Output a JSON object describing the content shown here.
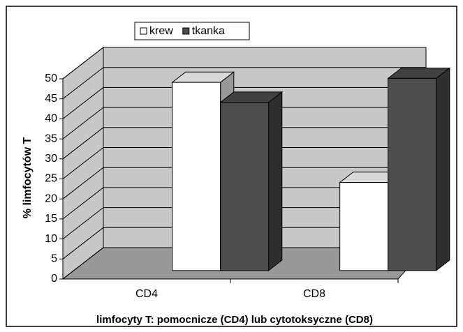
{
  "chart_data": {
    "type": "bar3d",
    "x_label": "limfocyty T: pomocnicze (CD4) lub  cytotoksyczne (CD8)",
    "y_label": "% limfocytów T",
    "categories": [
      "CD4",
      "CD8"
    ],
    "series": [
      {
        "name": "krew",
        "color": "#ffffff",
        "values": [
          47,
          22
        ]
      },
      {
        "name": "tkanka",
        "color": "#4d4d4d",
        "values": [
          42,
          48
        ]
      }
    ],
    "ylim": [
      0,
      50
    ],
    "yticks": [
      0,
      5,
      10,
      15,
      20,
      25,
      30,
      35,
      40,
      45,
      50
    ],
    "grid": true
  }
}
